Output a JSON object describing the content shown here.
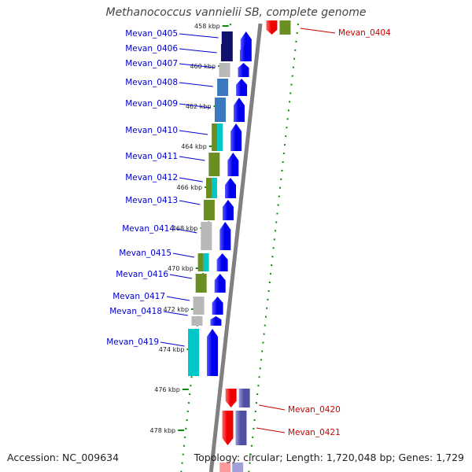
{
  "title": "Methanococcus vannielii SB, complete genome",
  "accession": "Accession: NC_009634",
  "summary": "Topology: circular; Length: 1,720,048 bp; Genes: 1,729",
  "colors": {
    "backbone": "#808080",
    "forward_gene": "#0000ee",
    "reverse_gene": "#ee0000",
    "forward_label": "#0000cc",
    "reverse_label": "#cc0000",
    "cog_olive": "#6b8e23",
    "cog_cyan": "#00c8c8",
    "cog_steelblue": "#3a78c0",
    "cog_navy": "#10106e",
    "cog_gray": "#b8b8b8",
    "cog_slate": "#5050a0",
    "tick_green": "#0a8a0a"
  },
  "scale_ticks": [
    "458 kbp",
    "460 kbp",
    "462 kbp",
    "464 kbp",
    "466 kbp",
    "468 kbp",
    "470 kbp",
    "472 kbp",
    "474 kbp",
    "476 kbp",
    "478 kbp"
  ],
  "forward_genes": [
    {
      "label": "Mevan_0405",
      "cog": "navy"
    },
    {
      "label": "Mevan_0406",
      "cog": "navy"
    },
    {
      "label": "Mevan_0407",
      "cog": "gray"
    },
    {
      "label": "Mevan_0408",
      "cog": "steelblue"
    },
    {
      "label": "Mevan_0409",
      "cog": "steelblue"
    },
    {
      "label": "Mevan_0410",
      "cog": "olive+cyan"
    },
    {
      "label": "Mevan_0411",
      "cog": "olive"
    },
    {
      "label": "Mevan_0412",
      "cog": "olive+cyan"
    },
    {
      "label": "Mevan_0413",
      "cog": "olive"
    },
    {
      "label": "Mevan_0414",
      "cog": "gray"
    },
    {
      "label": "Mevan_0415",
      "cog": "olive+cyan"
    },
    {
      "label": "Mevan_0416",
      "cog": "olive"
    },
    {
      "label": "Mevan_0417",
      "cog": "gray"
    },
    {
      "label": "Mevan_0418",
      "cog": "gray"
    },
    {
      "label": "Mevan_0419",
      "cog": "cyan"
    }
  ],
  "reverse_genes": [
    {
      "label": "Mevan_0404",
      "cog": "olive"
    },
    {
      "label": "Mevan_0420",
      "cog": "slate"
    },
    {
      "label": "Mevan_0421",
      "cog": "slate"
    }
  ]
}
